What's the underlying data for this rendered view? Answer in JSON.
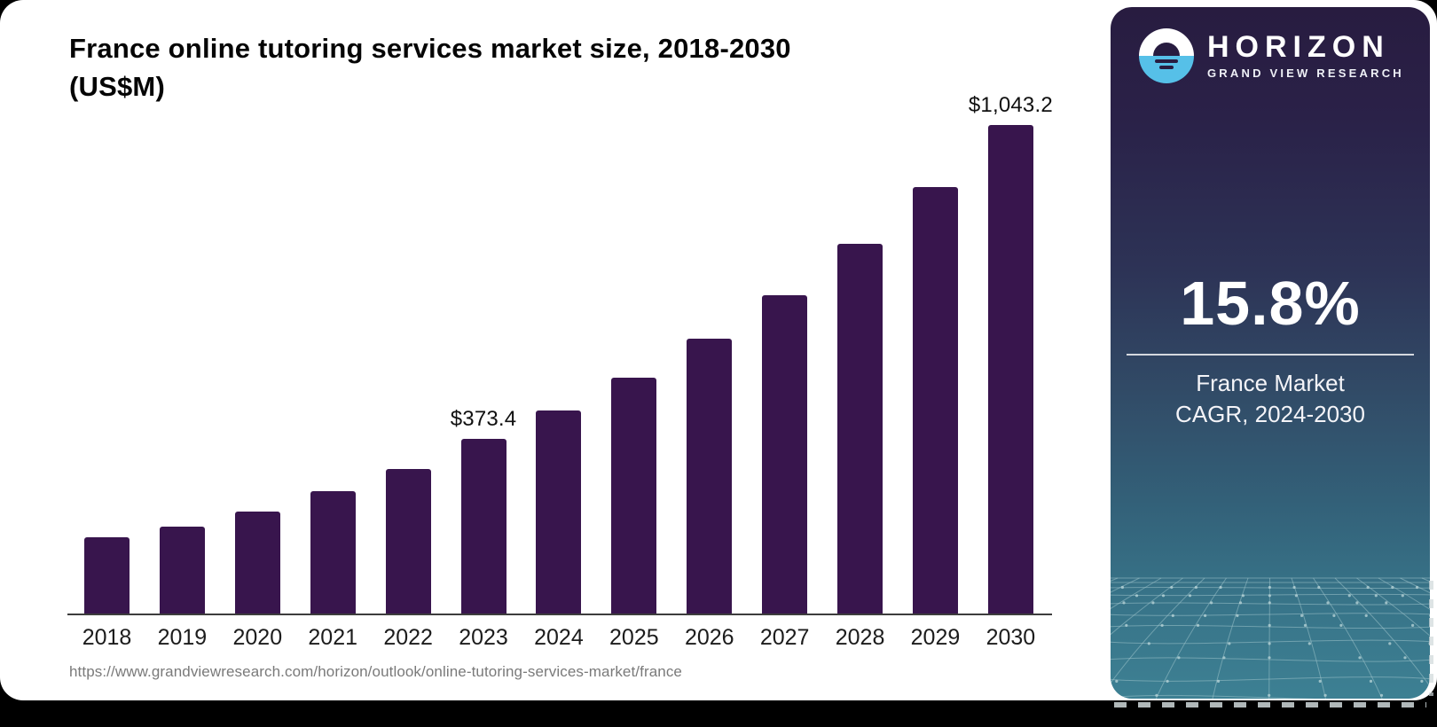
{
  "theme": {
    "bar_color": "#38154d",
    "accent_blue": "#56c0e8",
    "axis_color": "#3d3d3d",
    "label_color": "#101010",
    "url_color": "#7a7a7a",
    "sidebar_gradient_top": "#281c40",
    "sidebar_gradient_bottom": "#3d8093"
  },
  "header": {
    "title_line1": "France online tutoring services market size, 2018-2030",
    "title_line2": "(US$M)"
  },
  "chart_data": {
    "type": "bar",
    "title": "France online tutoring services market size, 2018-2030 (US$M)",
    "unit": "US$M",
    "categories": [
      "2018",
      "2019",
      "2020",
      "2021",
      "2022",
      "2023",
      "2024",
      "2025",
      "2026",
      "2027",
      "2028",
      "2029",
      "2030"
    ],
    "values": [
      164.8,
      186.9,
      219.6,
      261.9,
      310.2,
      373.4,
      435.1,
      505.3,
      588.0,
      680.2,
      790.1,
      910.5,
      1043.2
    ],
    "data_labels": {
      "2023": "$373.4",
      "2030": "$1,043.2"
    },
    "xlabel": "",
    "ylabel": "",
    "ylim": [
      0,
      1043.2
    ],
    "grid": false,
    "legend": false
  },
  "sidebar": {
    "brand": "HORIZON",
    "sub_brand": "GRAND VIEW RESEARCH",
    "stat": {
      "value": "15.8%",
      "caption_line1": "France Market",
      "caption_line2": "CAGR, 2024-2030"
    }
  },
  "footer": {
    "source_url": "https://www.grandviewresearch.com/horizon/outlook/online-tutoring-services-market/france"
  }
}
